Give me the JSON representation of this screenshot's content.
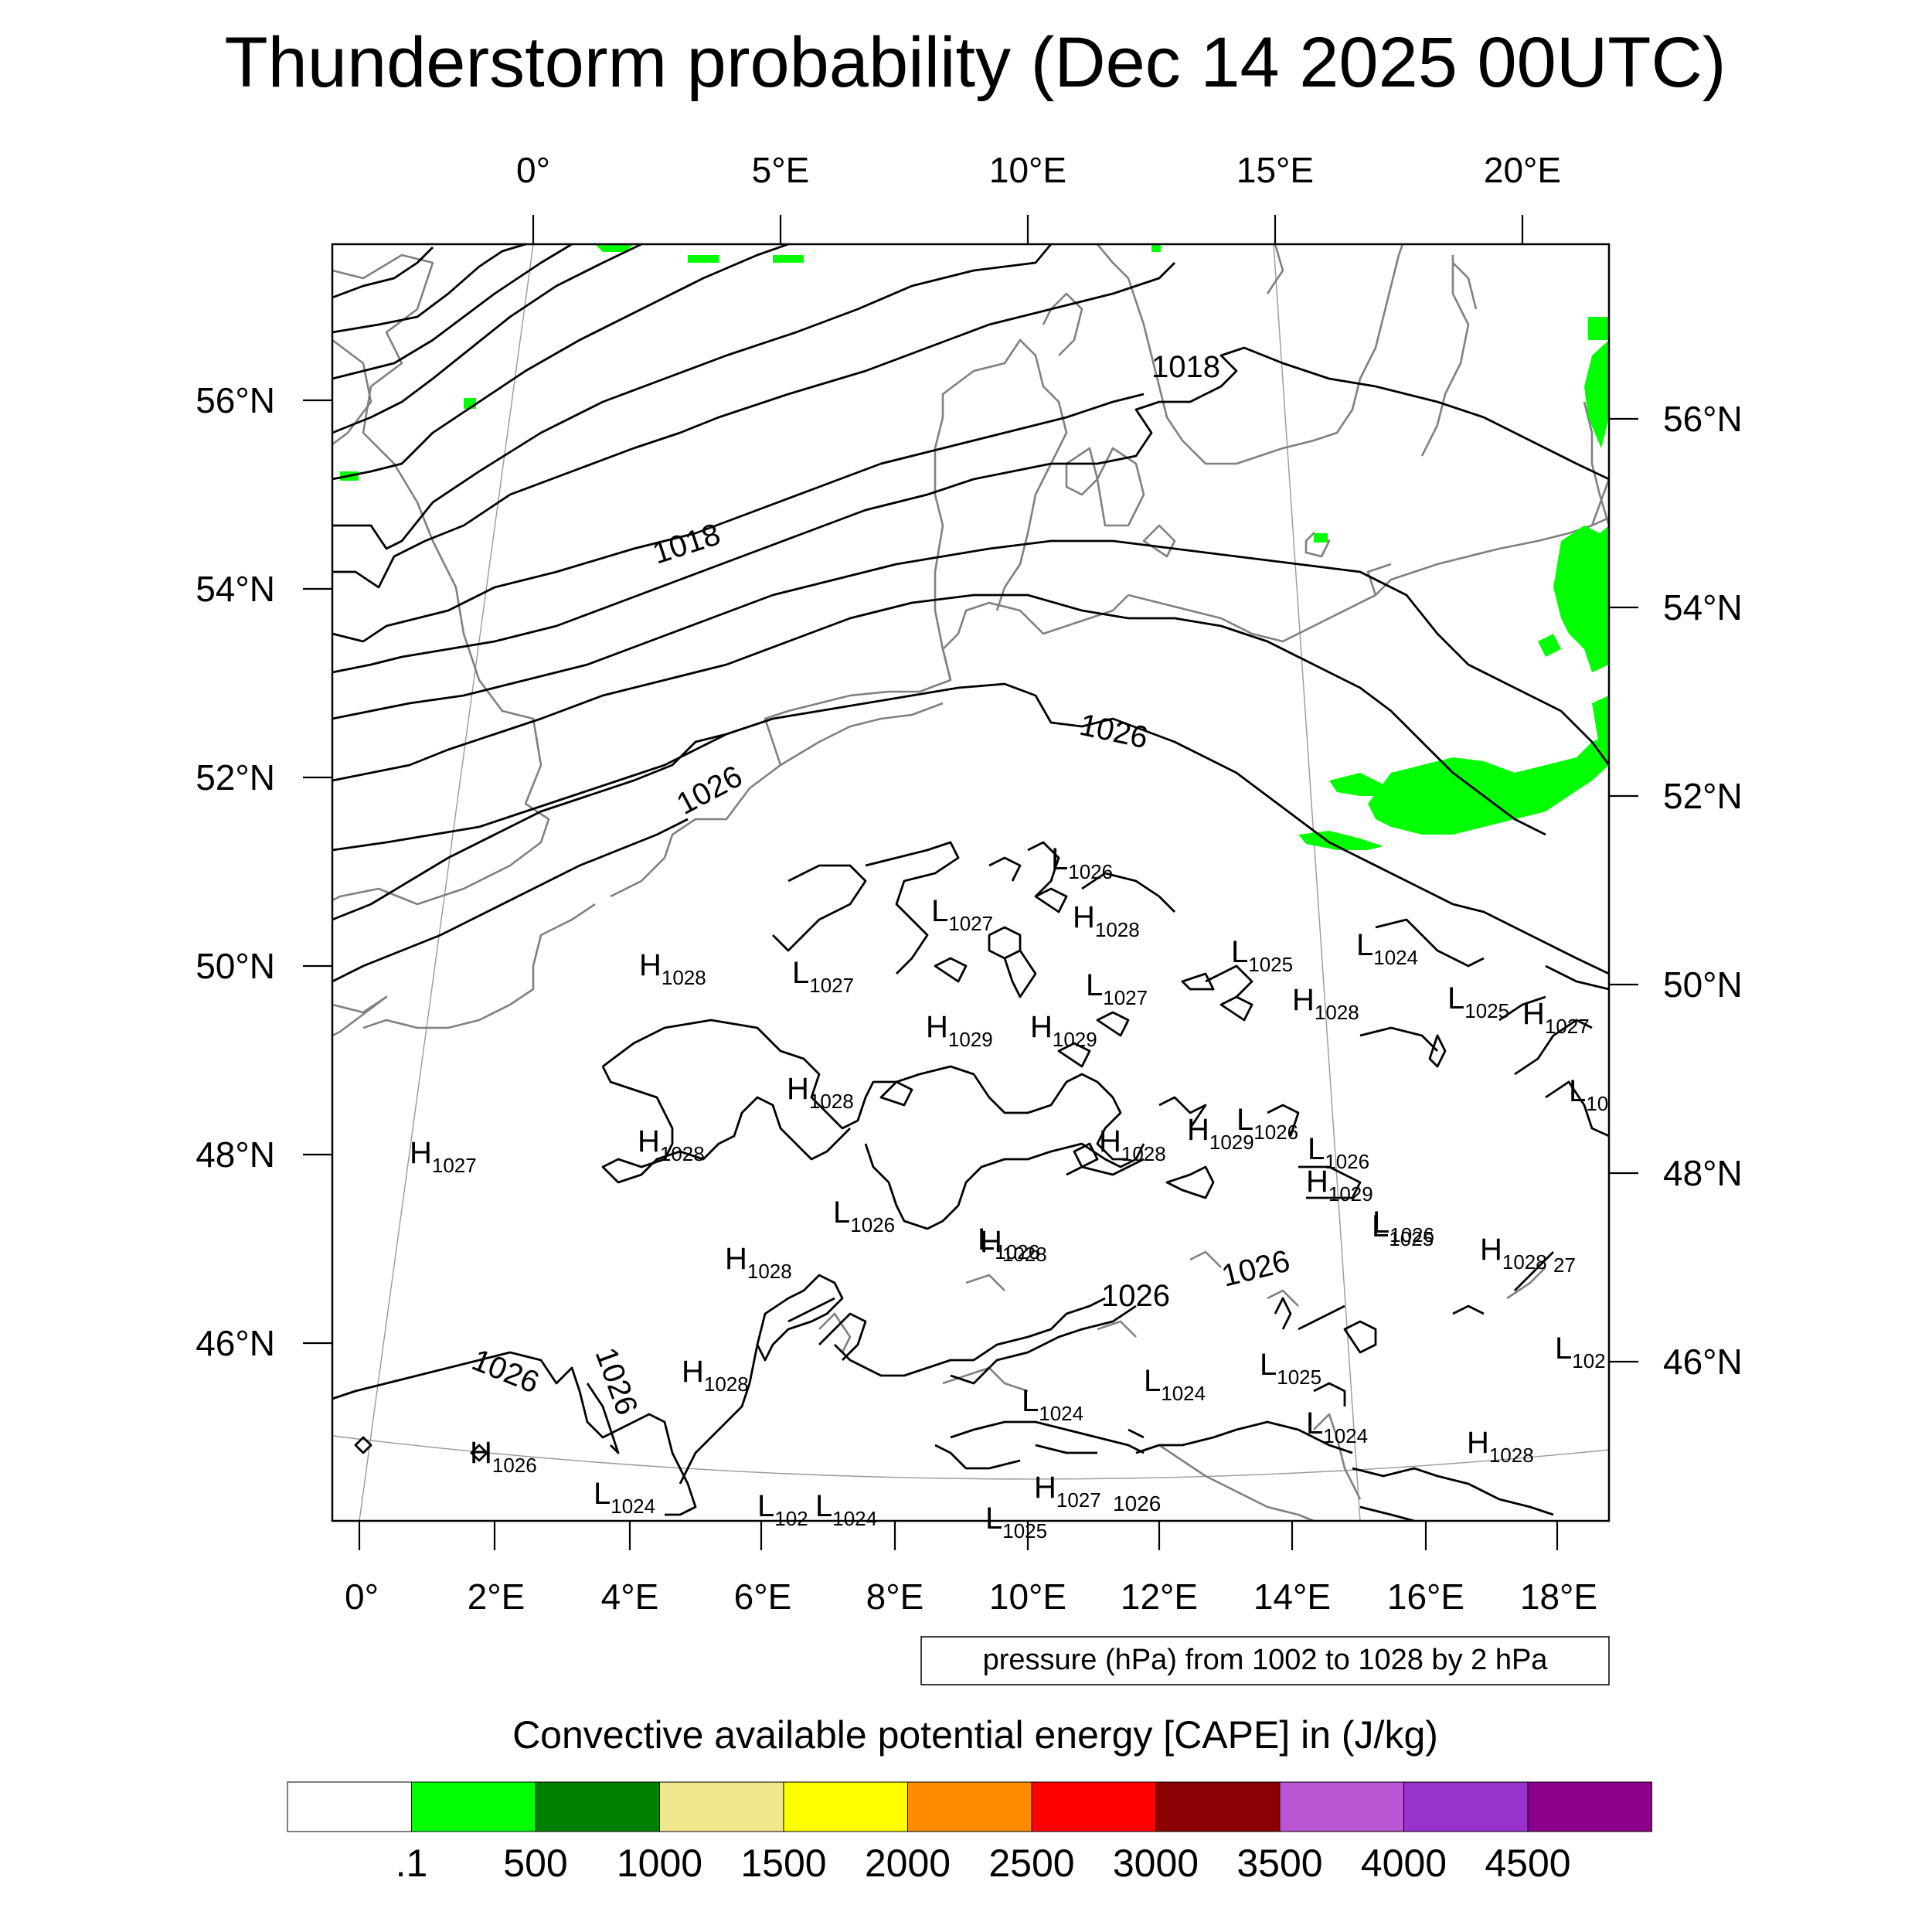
{
  "title": "Thunderstorm probability (Dec 14 2025 00UTC)",
  "top_lon_labels": [
    "0°",
    "5°E",
    "10°E",
    "15°E",
    "20°E"
  ],
  "bottom_lon_labels": [
    "0°",
    "2°E",
    "4°E",
    "6°E",
    "8°E",
    "10°E",
    "12°E",
    "14°E",
    "16°E",
    "18°E"
  ],
  "left_lat_labels": [
    "56°N",
    "54°N",
    "52°N",
    "50°N",
    "48°N",
    "46°N"
  ],
  "right_lat_labels": [
    "56°N",
    "54°N",
    "52°N",
    "50°N",
    "48°N",
    "46°N"
  ],
  "contour_info": "pressure (hPa) from 1002 to 1028 by 2 hPa",
  "colorbar": {
    "title": "Convective available potential energy [CAPE] in (J/kg)",
    "colors": [
      "#ffffff",
      "#00ff00",
      "#008000",
      "#f0e68c",
      "#ffff00",
      "#ff8c00",
      "#ff0000",
      "#8b0000",
      "#ba55d3",
      "#9932cc",
      "#8b008b"
    ],
    "tick_labels": [
      ".1",
      "500",
      "1000",
      "1500",
      "2000",
      "2500",
      "3000",
      "3500",
      "4000",
      "4500"
    ]
  },
  "isobar_labels": [
    "1018",
    "1018",
    "1026",
    "1026",
    "1026",
    "1026",
    "1026",
    "1026",
    "1026"
  ],
  "pressure_markers": [
    {
      "type": "L",
      "value": "1026"
    },
    {
      "type": "L",
      "value": "1027"
    },
    {
      "type": "H",
      "value": "1028"
    },
    {
      "type": "H",
      "value": "1028"
    },
    {
      "type": "L",
      "value": "1027"
    },
    {
      "type": "L",
      "value": "1027"
    },
    {
      "type": "L",
      "value": "1025"
    },
    {
      "type": "L",
      "value": "1024"
    },
    {
      "type": "H",
      "value": "1028"
    },
    {
      "type": "L",
      "value": "1025"
    },
    {
      "type": "H",
      "value": "1027"
    },
    {
      "type": "H",
      "value": "1029"
    },
    {
      "type": "H",
      "value": "1029"
    },
    {
      "type": "H",
      "value": "1028"
    },
    {
      "type": "L",
      "value": "10"
    },
    {
      "type": "H",
      "value": "1027"
    },
    {
      "type": "H",
      "value": "1028"
    },
    {
      "type": "H",
      "value": "1028"
    },
    {
      "type": "H",
      "value": "1029"
    },
    {
      "type": "L",
      "value": "1026"
    },
    {
      "type": "L",
      "value": "1026"
    },
    {
      "type": "H",
      "value": "1029"
    },
    {
      "type": "L",
      "value": "1026"
    },
    {
      "type": "L",
      "value": "1026"
    },
    {
      "type": "H",
      "value": "1028"
    },
    {
      "type": "L",
      "value": "1025"
    },
    {
      "type": "H",
      "value": "1028"
    },
    {
      "type": "H",
      "value": "1028"
    },
    {
      "type": "L",
      "value": "1026"
    },
    {
      "type": "H",
      "value": "1028"
    },
    {
      "type": "L",
      "value": "1024"
    },
    {
      "type": "L",
      "value": "1024"
    },
    {
      "type": "L",
      "value": "1025"
    },
    {
      "type": "L",
      "value": "102"
    },
    {
      "type": "L",
      "value": "1024"
    },
    {
      "type": "H",
      "value": "1026"
    },
    {
      "type": "L",
      "value": "1024"
    },
    {
      "type": "L",
      "value": "102"
    },
    {
      "type": "L",
      "value": "1024"
    },
    {
      "type": "H",
      "value": "1027"
    },
    {
      "type": "L",
      "value": "1025"
    },
    {
      "type": "H",
      "value": "1028"
    }
  ],
  "plain_labels": [
    "1026",
    "27"
  ]
}
